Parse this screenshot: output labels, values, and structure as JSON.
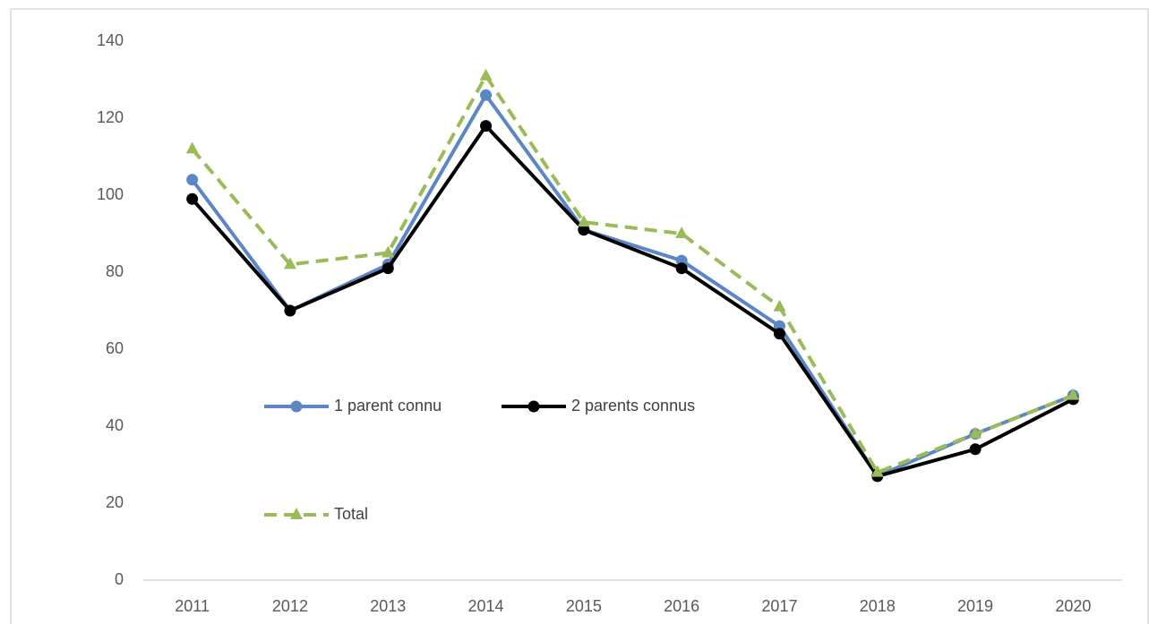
{
  "chart_data": {
    "type": "line",
    "categories": [
      "2011",
      "2012",
      "2013",
      "2014",
      "2015",
      "2016",
      "2017",
      "2018",
      "2019",
      "2020"
    ],
    "series": [
      {
        "name": "1 parent connu",
        "color": "#5b87c5",
        "marker": "circle",
        "dash": false,
        "values": [
          104,
          70,
          82,
          126,
          91,
          83,
          66,
          27,
          38,
          48
        ]
      },
      {
        "name": "2 parents connus",
        "color": "#000000",
        "marker": "circle",
        "dash": false,
        "values": [
          99,
          70,
          81,
          118,
          91,
          81,
          64,
          27,
          34,
          47
        ]
      },
      {
        "name": "Total",
        "color": "#9bbb59",
        "marker": "triangle",
        "dash": true,
        "values": [
          112,
          82,
          85,
          131,
          93,
          90,
          71,
          28,
          38,
          48
        ]
      }
    ],
    "ylim": [
      0,
      140
    ],
    "yticks": [
      0,
      20,
      40,
      60,
      80,
      100,
      120,
      140
    ],
    "grid": false
  }
}
